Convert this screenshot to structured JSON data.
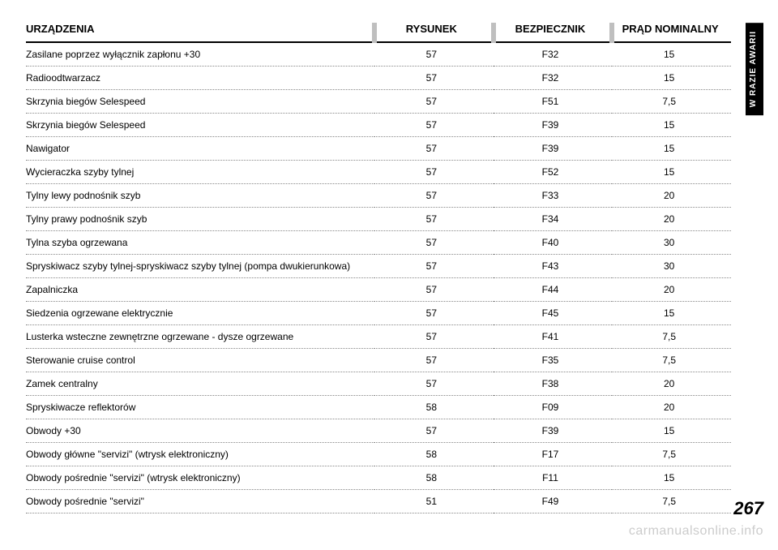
{
  "side_tab": "W RAZIE AWARII",
  "page_number": "267",
  "watermark": "carmanualsonline.info",
  "table": {
    "headers": {
      "device": "URZĄDZENIA",
      "figure": "RYSUNEK",
      "fuse": "BEZPIECZNIK",
      "amperage": "PRĄD NOMINALNY"
    },
    "rows": [
      {
        "device": "Zasilane poprzez wyłącznik zapłonu +30",
        "figure": "57",
        "fuse": "F32",
        "amp": "15"
      },
      {
        "device": "Radioodtwarzacz",
        "figure": "57",
        "fuse": "F32",
        "amp": "15"
      },
      {
        "device": "Skrzynia biegów Selespeed",
        "figure": "57",
        "fuse": "F51",
        "amp": "7,5"
      },
      {
        "device": "Skrzynia biegów Selespeed",
        "figure": "57",
        "fuse": "F39",
        "amp": "15"
      },
      {
        "device": "Nawigator",
        "figure": "57",
        "fuse": "F39",
        "amp": "15"
      },
      {
        "device": "Wycieraczka szyby tylnej",
        "figure": "57",
        "fuse": "F52",
        "amp": "15"
      },
      {
        "device": "Tylny lewy podnośnik szyb",
        "figure": "57",
        "fuse": "F33",
        "amp": "20"
      },
      {
        "device": "Tylny prawy podnośnik szyb",
        "figure": "57",
        "fuse": "F34",
        "amp": "20"
      },
      {
        "device": "Tylna szyba ogrzewana",
        "figure": "57",
        "fuse": "F40",
        "amp": "30"
      },
      {
        "device": "Spryskiwacz szyby tylnej-spryskiwacz szyby tylnej (pompa dwukierunkowa)",
        "figure": "57",
        "fuse": "F43",
        "amp": "30"
      },
      {
        "device": "Zapalniczka",
        "figure": "57",
        "fuse": "F44",
        "amp": "20"
      },
      {
        "device": "Siedzenia ogrzewane elektrycznie",
        "figure": "57",
        "fuse": "F45",
        "amp": "15"
      },
      {
        "device": "Lusterka wsteczne zewnętrzne ogrzewane - dysze ogrzewane",
        "figure": "57",
        "fuse": "F41",
        "amp": "7,5"
      },
      {
        "device": "Sterowanie cruise control",
        "figure": "57",
        "fuse": "F35",
        "amp": "7,5"
      },
      {
        "device": "Zamek centralny",
        "figure": "57",
        "fuse": "F38",
        "amp": "20"
      },
      {
        "device": "Spryskiwacze reflektorów",
        "figure": "58",
        "fuse": "F09",
        "amp": "20"
      },
      {
        "device": "Obwody +30",
        "figure": "57",
        "fuse": "F39",
        "amp": "15"
      },
      {
        "device": "Obwody główne \"servizi\" (wtrysk elektroniczny)",
        "figure": "58",
        "fuse": "F17",
        "amp": "7,5"
      },
      {
        "device": "Obwody pośrednie \"servizi\" (wtrysk elektroniczny)",
        "figure": "58",
        "fuse": "F11",
        "amp": "15"
      },
      {
        "device": "Obwody pośrednie \"servizi\"",
        "figure": "51",
        "fuse": "F49",
        "amp": "7,5"
      }
    ]
  }
}
